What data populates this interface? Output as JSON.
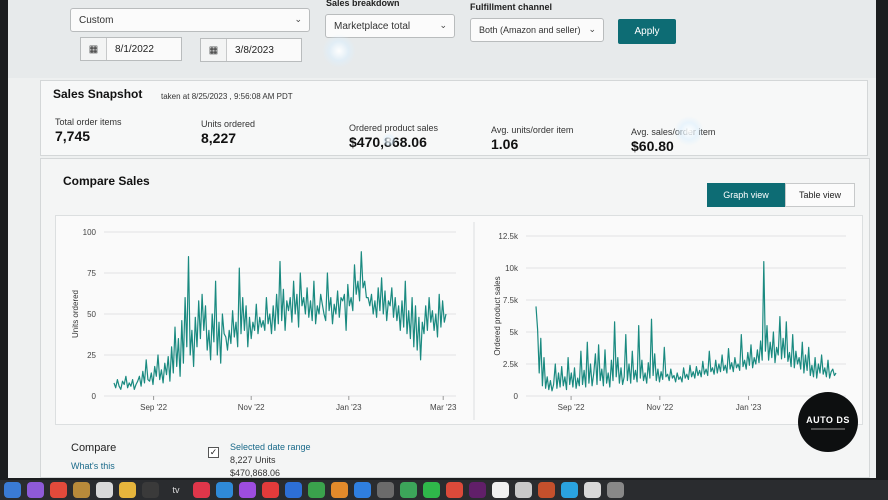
{
  "filters": {
    "date_preset": "Custom",
    "sales_breakdown_label": "Sales breakdown",
    "sales_breakdown_value": "Marketplace total",
    "fulfillment_label": "Fulfillment channel",
    "fulfillment_value": "Both (Amazon and seller)",
    "start_date": "8/1/2022",
    "end_date": "3/8/2023",
    "apply_label": "Apply"
  },
  "snapshot": {
    "title": "Sales Snapshot",
    "taken": "taken at 8/25/2023 , 9:56:08 AM PDT",
    "metrics": [
      {
        "label": "Total order items",
        "value": "7,745"
      },
      {
        "label": "Units ordered",
        "value": "8,227"
      },
      {
        "label": "Ordered product sales",
        "value": "$470,868.06"
      },
      {
        "label": "Avg. units/order item",
        "value": "1.06"
      },
      {
        "label": "Avg. sales/order item",
        "value": "$60.80"
      }
    ]
  },
  "compare": {
    "title": "Compare Sales",
    "graph_view": "Graph view",
    "table_view": "Table view",
    "compare_label": "Compare",
    "whats_this": "What's this",
    "selected_range_label": "Selected date range",
    "selected_units": "8,227 Units",
    "selected_sales": "$470,868.06"
  },
  "logo_text": "AUTO DS",
  "colors": {
    "accent": "#0d6c74",
    "line": "#1a8a80"
  },
  "chart_data": [
    {
      "type": "line",
      "ylabel": "Units ordered",
      "ylim": [
        0,
        100
      ],
      "yticks": [
        "0",
        "25",
        "50",
        "75",
        "100"
      ],
      "xtick_labels": [
        "Sep '22",
        "Nov '22",
        "Jan '23",
        "Mar '23"
      ],
      "xtick_days": [
        31,
        92,
        153,
        212
      ],
      "x_days_total": 220,
      "values": [
        8,
        5,
        10,
        6,
        4,
        9,
        7,
        12,
        5,
        8,
        6,
        10,
        4,
        7,
        9,
        12,
        6,
        15,
        8,
        22,
        10,
        9,
        14,
        7,
        18,
        12,
        25,
        10,
        16,
        8,
        20,
        13,
        24,
        9,
        30,
        14,
        42,
        18,
        35,
        12,
        46,
        20,
        60,
        30,
        85,
        25,
        40,
        18,
        48,
        30,
        58,
        35,
        62,
        40,
        55,
        28,
        40,
        22,
        50,
        33,
        70,
        25,
        45,
        20,
        50,
        38,
        36,
        28,
        40,
        32,
        52,
        36,
        45,
        30,
        78,
        38,
        60,
        40,
        55,
        30,
        48,
        35,
        45,
        40,
        56,
        38,
        48,
        42,
        46,
        40,
        60,
        44,
        50,
        38,
        55,
        40,
        62,
        44,
        82,
        46,
        65,
        40,
        58,
        52,
        60,
        45,
        70,
        50,
        62,
        42,
        75,
        55,
        60,
        50,
        66,
        48,
        58,
        46,
        70,
        44,
        55,
        50,
        62,
        56,
        50,
        46,
        75,
        52,
        60,
        44,
        56,
        50,
        64,
        48,
        60,
        58,
        62,
        40,
        68,
        55,
        60,
        52,
        80,
        62,
        70,
        58,
        88,
        66,
        70,
        60,
        60,
        55,
        62,
        50,
        58,
        48,
        66,
        52,
        72,
        50,
        64,
        46,
        58,
        55,
        66,
        48,
        60,
        46,
        55,
        40,
        58,
        42,
        70,
        38,
        52,
        35,
        60,
        30,
        55,
        28,
        48,
        22,
        45,
        38,
        55,
        40,
        60,
        45,
        52,
        40,
        50,
        36,
        62,
        42,
        58,
        45,
        50
      ]
    },
    {
      "type": "line",
      "ylabel": "Ordered product sales",
      "ylim": [
        0,
        12500
      ],
      "yticks": [
        "0",
        "2.5k",
        "5k",
        "7.5k",
        "10k",
        "12.5k"
      ],
      "xtick_labels": [
        "Sep '22",
        "Nov '22",
        "Jan '23"
      ],
      "xtick_days": [
        31,
        92,
        153
      ],
      "x_days_total": 220,
      "values": [
        7000,
        5200,
        1800,
        4500,
        800,
        3000,
        600,
        1500,
        500,
        1200,
        400,
        900,
        2500,
        600,
        1800,
        700,
        2300,
        800,
        1500,
        500,
        3000,
        900,
        1800,
        700,
        2200,
        600,
        1400,
        800,
        3500,
        900,
        2000,
        700,
        4200,
        1000,
        2500,
        800,
        1800,
        3300,
        900,
        4000,
        1200,
        2100,
        800,
        3600,
        1000,
        1800,
        700,
        2800,
        1200,
        5800,
        1500,
        3000,
        1000,
        2200,
        900,
        1500,
        4800,
        1200,
        2500,
        1000,
        3500,
        1300,
        2000,
        1100,
        5500,
        1400,
        2800,
        1200,
        1800,
        1000,
        2600,
        1400,
        6000,
        1600,
        3300,
        1200,
        2100,
        1100,
        1900,
        1300,
        3800,
        1500,
        1700,
        1200,
        2100,
        1400,
        1600,
        1100,
        1800,
        1300,
        1500,
        1100,
        2200,
        1400,
        1700,
        1300,
        2400,
        1500,
        1900,
        1400,
        2300,
        1600,
        2000,
        1500,
        2700,
        1700,
        2100,
        1600,
        3500,
        1900,
        2200,
        1700,
        2800,
        1800,
        2500,
        1900,
        3200,
        2000,
        2400,
        1800,
        3700,
        2100,
        2600,
        1900,
        3000,
        2200,
        2500,
        2000,
        4800,
        2300,
        2800,
        2100,
        3400,
        2400,
        4000,
        2200,
        3000,
        2500,
        3600,
        2600,
        4300,
        2800,
        10500,
        3500,
        5500,
        2800,
        4200,
        3000,
        5000,
        2600,
        3800,
        3200,
        6200,
        2900,
        4500,
        3000,
        5800,
        2700,
        3400,
        2300,
        4800,
        2200,
        3500,
        2500,
        3000,
        2100,
        4200,
        1800,
        3200,
        2000,
        3800,
        1600,
        2400,
        1500,
        3000,
        1400,
        2500,
        1800,
        3200,
        1700,
        2200,
        1500,
        2800,
        1400,
        1900,
        2100,
        1600,
        1800
      ]
    }
  ]
}
